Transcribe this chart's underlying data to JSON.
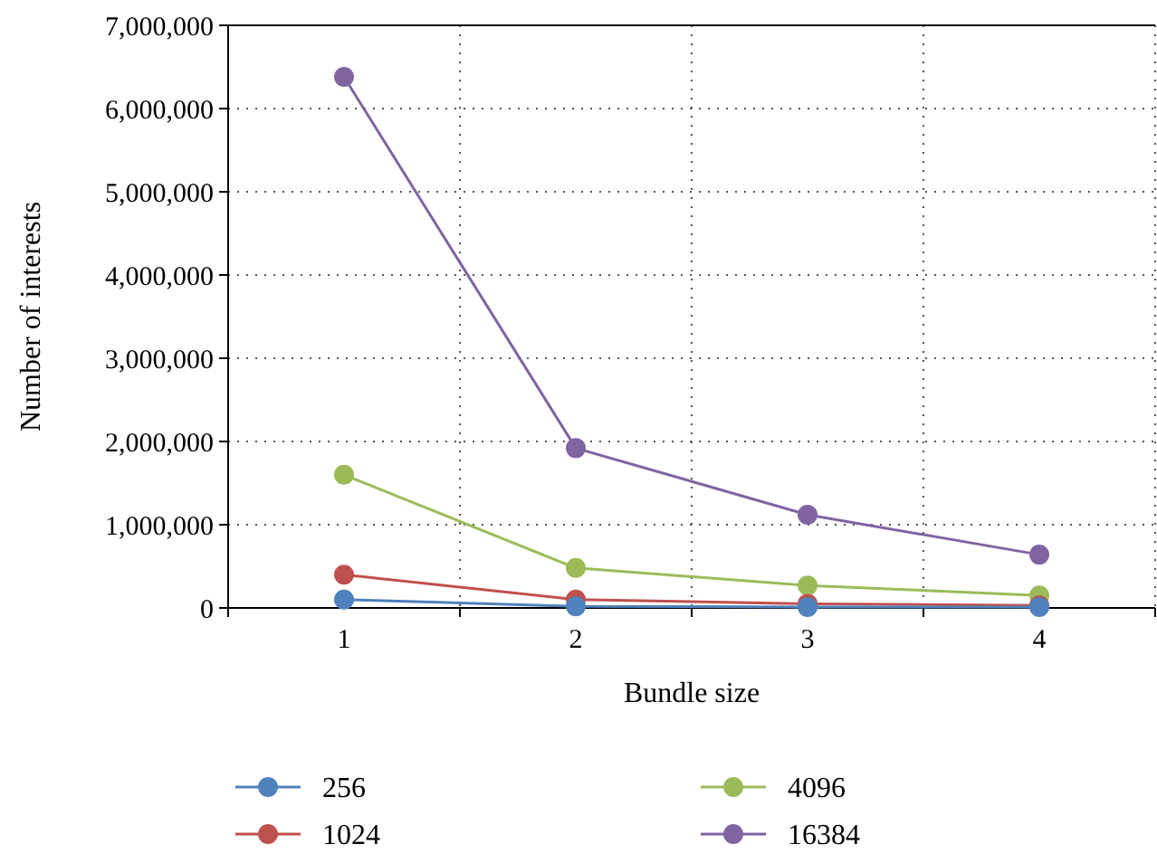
{
  "chart_data": {
    "type": "line",
    "xlabel": "Bundle size",
    "ylabel": "Number of interests",
    "categories": [
      "1",
      "2",
      "3",
      "4"
    ],
    "series": [
      {
        "name": "256",
        "color": "#4f81bd",
        "values": [
          100000,
          20000,
          10000,
          10000
        ]
      },
      {
        "name": "1024",
        "color": "#c0504d",
        "values": [
          400000,
          100000,
          50000,
          30000
        ]
      },
      {
        "name": "4096",
        "color": "#9bbb59",
        "values": [
          1600000,
          480000,
          270000,
          150000
        ]
      },
      {
        "name": "16384",
        "color": "#8064a2",
        "values": [
          6380000,
          1920000,
          1120000,
          640000
        ]
      }
    ],
    "ylim": [
      0,
      7000000
    ],
    "yticks": [
      {
        "value": 0,
        "label": "0"
      },
      {
        "value": 1000000,
        "label": "1,000,000"
      },
      {
        "value": 2000000,
        "label": "2,000,000"
      },
      {
        "value": 3000000,
        "label": "3,000,000"
      },
      {
        "value": 4000000,
        "label": "4,000,000"
      },
      {
        "value": 5000000,
        "label": "5,000,000"
      },
      {
        "value": 6000000,
        "label": "6,000,000"
      },
      {
        "value": 7000000,
        "label": "7,000,000"
      }
    ],
    "grid": true,
    "legend": "bottom",
    "marker": "circle",
    "line_style": "solid"
  }
}
